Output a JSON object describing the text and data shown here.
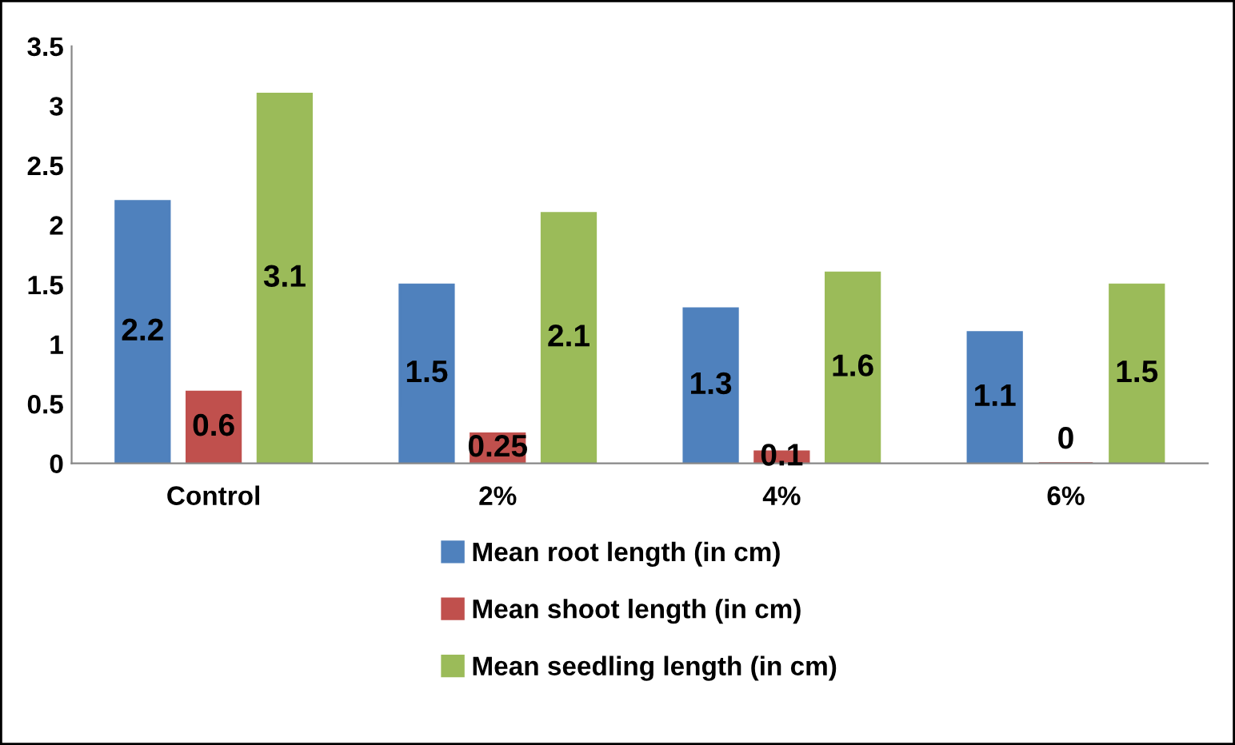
{
  "chart_data": {
    "type": "bar",
    "categories": [
      "Control",
      "2%",
      "4%",
      "6%"
    ],
    "series": [
      {
        "name": "Mean root length (in cm)",
        "color": "#4f81bd",
        "values": [
          2.2,
          1.5,
          1.3,
          1.1
        ]
      },
      {
        "name": "Mean shoot length (in cm)",
        "color": "#c0504d",
        "values": [
          0.6,
          0.25,
          0.1,
          0
        ]
      },
      {
        "name": "Mean seedling length (in cm)",
        "color": "#9bbb59",
        "values": [
          3.1,
          2.1,
          1.6,
          1.5
        ]
      }
    ],
    "ylim": [
      0,
      3.5
    ],
    "yticks": [
      0,
      0.5,
      1,
      1.5,
      2,
      2.5,
      3,
      3.5
    ],
    "grid": false,
    "legend": "bottom",
    "data_labels": true
  }
}
